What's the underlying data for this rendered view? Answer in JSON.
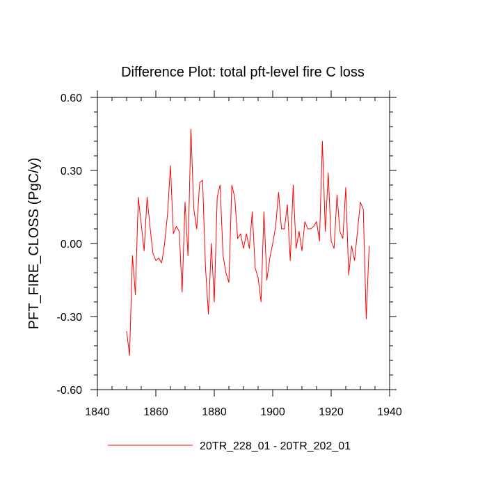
{
  "chart_data": {
    "type": "line",
    "title": "Difference Plot: total pft-level fire C loss",
    "xlabel": "",
    "ylabel": "PFT_FIRE_CLOSS  (PgC/y)",
    "xlim": [
      1840,
      1940
    ],
    "ylim": [
      -0.6,
      0.6
    ],
    "xticks": [
      1840,
      1860,
      1880,
      1900,
      1920,
      1940
    ],
    "yticks": [
      -0.6,
      -0.3,
      0.0,
      0.3,
      0.6
    ],
    "xtick_labels": [
      "1840",
      "1860",
      "1880",
      "1900",
      "1920",
      "1940"
    ],
    "ytick_labels": [
      "-0.60",
      "-0.30",
      "0.00",
      "0.30",
      "0.60"
    ],
    "grid": false,
    "legend_position": "bottom-center",
    "series": [
      {
        "name": "20TR_228_01 - 20TR_202_01",
        "color": "#ff0000",
        "x": [
          1850,
          1851,
          1852,
          1853,
          1854,
          1855,
          1856,
          1857,
          1858,
          1859,
          1860,
          1861,
          1862,
          1863,
          1864,
          1865,
          1866,
          1867,
          1868,
          1869,
          1870,
          1871,
          1872,
          1873,
          1874,
          1875,
          1876,
          1877,
          1878,
          1879,
          1880,
          1881,
          1882,
          1883,
          1884,
          1885,
          1886,
          1887,
          1888,
          1889,
          1890,
          1891,
          1892,
          1893,
          1894,
          1895,
          1896,
          1897,
          1898,
          1899,
          1900,
          1901,
          1902,
          1903,
          1904,
          1905,
          1906,
          1907,
          1908,
          1909,
          1910,
          1911,
          1912,
          1913,
          1914,
          1915,
          1916,
          1917,
          1918,
          1919,
          1920,
          1921,
          1922,
          1923,
          1924,
          1925,
          1926,
          1927,
          1928,
          1929,
          1930,
          1931,
          1932,
          1933
        ],
        "values": [
          -0.36,
          -0.46,
          -0.05,
          -0.21,
          0.19,
          0.08,
          -0.03,
          0.19,
          0.07,
          -0.04,
          -0.07,
          -0.06,
          -0.08,
          0.0,
          0.12,
          0.32,
          0.04,
          0.07,
          0.05,
          -0.2,
          0.17,
          -0.05,
          0.47,
          0.14,
          0.06,
          0.25,
          0.26,
          -0.1,
          -0.29,
          0.0,
          -0.24,
          0.19,
          0.24,
          -0.05,
          -0.12,
          -0.16,
          0.24,
          0.19,
          0.02,
          0.04,
          -0.02,
          0.04,
          -0.02,
          0.13,
          -0.1,
          -0.14,
          -0.24,
          0.13,
          -0.15,
          -0.06,
          0.0,
          0.07,
          0.21,
          0.06,
          0.06,
          0.16,
          -0.07,
          0.24,
          -0.02,
          0.05,
          -0.03,
          0.09,
          0.06,
          0.06,
          0.07,
          0.09,
          0.01,
          0.42,
          0.05,
          0.29,
          0.01,
          -0.02,
          0.2,
          0.05,
          0.02,
          0.23,
          -0.13,
          -0.01,
          -0.07,
          0.05,
          0.17,
          0.14,
          -0.31,
          -0.01
        ]
      }
    ]
  }
}
